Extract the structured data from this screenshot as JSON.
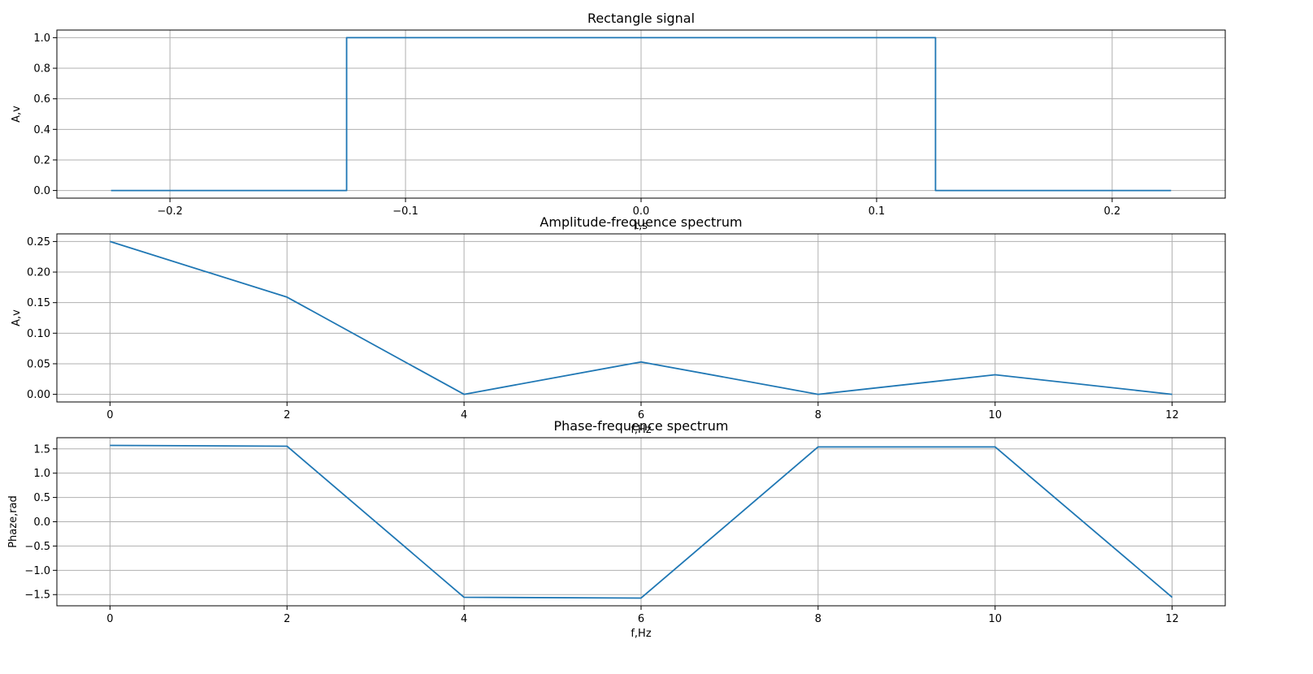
{
  "chart_data": [
    {
      "type": "line",
      "title": "Rectangle signal",
      "xlabel": "t,s",
      "ylabel": "A,v",
      "xlim": [
        -0.248,
        0.248
      ],
      "ylim": [
        -0.05,
        1.05
      ],
      "xticks": [
        -0.2,
        -0.1,
        0.0,
        0.1,
        0.2
      ],
      "xtick_labels": [
        "−0.2",
        "−0.1",
        "0.0",
        "0.1",
        "0.2"
      ],
      "yticks": [
        0.0,
        0.2,
        0.4,
        0.6,
        0.8,
        1.0
      ],
      "ytick_labels": [
        "0.0",
        "0.2",
        "0.4",
        "0.6",
        "0.8",
        "1.0"
      ],
      "grid": true,
      "color": "#1f77b4",
      "x": [
        -0.225,
        -0.125,
        -0.125,
        0.125,
        0.125,
        0.225
      ],
      "y": [
        0,
        0,
        1,
        1,
        0,
        0
      ]
    },
    {
      "type": "line",
      "title": "Amplitude-frequence spectrum",
      "xlabel": "f,Hz",
      "ylabel": "A,v",
      "xlim": [
        -0.6,
        12.6
      ],
      "ylim": [
        -0.0125,
        0.2625
      ],
      "xticks": [
        0,
        2,
        4,
        6,
        8,
        10,
        12
      ],
      "xtick_labels": [
        "0",
        "2",
        "4",
        "6",
        "8",
        "10",
        "12"
      ],
      "yticks": [
        0.0,
        0.05,
        0.1,
        0.15,
        0.2,
        0.25
      ],
      "ytick_labels": [
        "0.00",
        "0.05",
        "0.10",
        "0.15",
        "0.20",
        "0.25"
      ],
      "grid": true,
      "color": "#1f77b4",
      "x": [
        0,
        2,
        4,
        6,
        8,
        10,
        12
      ],
      "y": [
        0.25,
        0.159,
        0.0,
        0.053,
        0.0,
        0.032,
        0.0
      ]
    },
    {
      "type": "line",
      "title": "Phase-frequence spectrum",
      "xlabel": "f,Hz",
      "ylabel": "Phaze,rad",
      "xlim": [
        -0.6,
        12.6
      ],
      "ylim": [
        -1.73,
        1.73
      ],
      "xticks": [
        0,
        2,
        4,
        6,
        8,
        10,
        12
      ],
      "xtick_labels": [
        "0",
        "2",
        "4",
        "6",
        "8",
        "10",
        "12"
      ],
      "yticks": [
        -1.5,
        -1.0,
        -0.5,
        0.0,
        0.5,
        1.0,
        1.5
      ],
      "ytick_labels": [
        "−1.5",
        "−1.0",
        "−0.5",
        "0.0",
        "0.5",
        "1.0",
        "1.5"
      ],
      "grid": true,
      "color": "#1f77b4",
      "x": [
        0,
        2,
        4,
        6,
        8,
        10,
        12
      ],
      "y": [
        1.571,
        1.555,
        -1.555,
        -1.571,
        1.54,
        1.54,
        -1.555
      ]
    }
  ]
}
